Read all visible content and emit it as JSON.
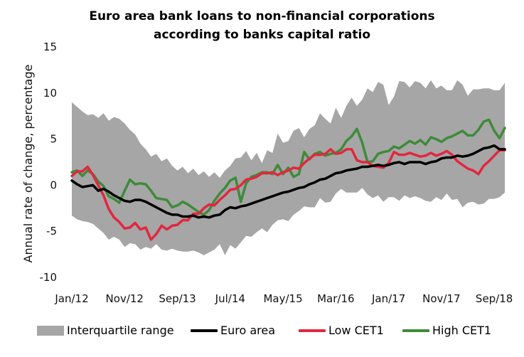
{
  "chart_data": {
    "type": "line",
    "title_lines": [
      "Euro area bank loans to non-financial corporations",
      "according to banks capital ratio"
    ],
    "ylabel": "Annual rate of change, percentage",
    "xlabel": "",
    "ylim": [
      -10,
      15
    ],
    "yticks": [
      -10,
      -5,
      0,
      5,
      10,
      15
    ],
    "xtick_labels": [
      "Jan/12",
      "Nov/12",
      "Sep/13",
      "Jul/14",
      "May/15",
      "Mar/16",
      "Jan/17",
      "Nov/17",
      "Sep/18"
    ],
    "xtick_month_index": [
      0,
      10,
      20,
      30,
      40,
      50,
      60,
      70,
      80
    ],
    "x_months": 83,
    "grid": false,
    "legend_position": "bottom",
    "colors": {
      "band": "#a6a6a6",
      "euro": "#000000",
      "low": "#e3263f",
      "high": "#3f8a3a"
    },
    "band": {
      "name": "Interquartile range",
      "upper": [
        9,
        8.5,
        8,
        7.6,
        7.7,
        7.3,
        7.8,
        7,
        7.4,
        7.2,
        6.7,
        6,
        5.5,
        4.5,
        3.9,
        3.1,
        3.4,
        2.6,
        2.9,
        2.1,
        1.6,
        2,
        1.3,
        1.8,
        1.1,
        1.5,
        0.9,
        1.4,
        0.8,
        1.6,
        2.1,
        2.9,
        3,
        3.7,
        2.7,
        3.5,
        2.4,
        3.8,
        3.5,
        5.6,
        4.6,
        4.8,
        5.9,
        6.2,
        5.2,
        6.1,
        6.5,
        7.8,
        7.2,
        6.7,
        8.4,
        7.3,
        8.6,
        9.5,
        8.6,
        9.3,
        10.5,
        10.1,
        11.2,
        10.9,
        8.7,
        9.6,
        11.3,
        11.2,
        10.6,
        11.3,
        11.1,
        10.5,
        11.4,
        10.5,
        10.8,
        10.3,
        10.3,
        11.4,
        10.9,
        9.7,
        10.4,
        10.4,
        10.5,
        10.5,
        10.3,
        10.3,
        11.1
      ],
      "lower": [
        -3.3,
        -3.7,
        -3.9,
        -4,
        -4.2,
        -4.7,
        -5.2,
        -5.9,
        -5.6,
        -5.9,
        -6.7,
        -6.3,
        -6.4,
        -7,
        -6.7,
        -6.9,
        -6.4,
        -7,
        -7.1,
        -6.9,
        -7.1,
        -7.2,
        -7.2,
        -7.1,
        -7.3,
        -7.6,
        -7.3,
        -7,
        -6.4,
        -7.6,
        -6.5,
        -6.9,
        -6.2,
        -5.5,
        -5.6,
        -5.1,
        -4.7,
        -5.1,
        -4.3,
        -3.8,
        -3.7,
        -3.9,
        -3.2,
        -2.8,
        -2.3,
        -2.4,
        -2.4,
        -1.4,
        -1.9,
        -1.8,
        -0.9,
        -0.4,
        -0.8,
        -0.8,
        -0.8,
        -0.3,
        -1,
        -1.4,
        -1.1,
        -1.8,
        -1.3,
        -1.3,
        -1.7,
        -1.1,
        -1.4,
        -1.2,
        -1.4,
        -1.7,
        -1.8,
        -1.3,
        -1.6,
        -0.9,
        -1.6,
        -1.5,
        -2.4,
        -1.9,
        -1.8,
        -2.1,
        -2,
        -1.5,
        -1.5,
        -1.3,
        -0.8
      ]
    },
    "series": [
      {
        "name": "Euro area",
        "values": [
          0.5,
          0.1,
          -0.2,
          -0.1,
          0,
          -0.6,
          -0.4,
          -0.7,
          -1.1,
          -1.4,
          -1.7,
          -1.8,
          -1.6,
          -1.6,
          -1.8,
          -2.1,
          -2.4,
          -2.7,
          -3,
          -3.2,
          -3.2,
          -3.4,
          -3.4,
          -3.3,
          -3.5,
          -3.4,
          -3.5,
          -3.3,
          -3.2,
          -2.7,
          -2.4,
          -2.5,
          -2.3,
          -2.2,
          -2,
          -1.8,
          -1.6,
          -1.4,
          -1.2,
          -1,
          -0.8,
          -0.7,
          -0.5,
          -0.3,
          -0.2,
          0.1,
          0.3,
          0.6,
          0.7,
          1,
          1.3,
          1.4,
          1.6,
          1.7,
          1.8,
          2,
          2,
          2.1,
          2.2,
          2.1,
          2.2,
          2.4,
          2.5,
          2.3,
          2.5,
          2.5,
          2.5,
          2.3,
          2.5,
          2.6,
          2.9,
          3,
          3,
          3.2,
          3.1,
          3.2,
          3.4,
          3.7,
          4,
          4.1,
          4.3,
          3.9,
          3.9
        ]
      },
      {
        "name": "Low CET1",
        "values": [
          1,
          1.5,
          1.5,
          2,
          1.1,
          0,
          -1.1,
          -2.6,
          -3.5,
          -4,
          -4.7,
          -4.6,
          -4.1,
          -4.8,
          -4.6,
          -5.9,
          -5.3,
          -4.4,
          -4.8,
          -4.4,
          -4.3,
          -3.8,
          -3.8,
          -3.1,
          -3.1,
          -2.5,
          -2.1,
          -2.2,
          -1.6,
          -1.1,
          -0.5,
          -0.4,
          0,
          0.6,
          0.7,
          0.9,
          1.3,
          1.3,
          1.4,
          1.1,
          1.4,
          1.6,
          1.9,
          1.8,
          2.4,
          2.9,
          3.3,
          3.3,
          3.4,
          3.9,
          3.4,
          3.5,
          3.9,
          3.9,
          2.7,
          2.5,
          2.5,
          2.1,
          2,
          1.9,
          2.4,
          3.6,
          3.3,
          3.3,
          3.5,
          3.3,
          3.1,
          3.2,
          3.5,
          3.2,
          3.4,
          3.7,
          3.3,
          2.6,
          2.2,
          1.8,
          1.6,
          1.2,
          2.1,
          2.6,
          3.2,
          3.8,
          3.8
        ]
      },
      {
        "name": "High CET1",
        "values": [
          1.4,
          1.6,
          1,
          1.6,
          1.2,
          0.4,
          -0.1,
          -1.2,
          -1.5,
          -1.9,
          -0.6,
          0.6,
          0.1,
          0.2,
          0.1,
          -0.6,
          -1.4,
          -1.5,
          -1.6,
          -2.4,
          -2.2,
          -1.8,
          -2.1,
          -2.5,
          -2.9,
          -3.2,
          -2.7,
          -1.7,
          -0.9,
          -0.3,
          0.5,
          0.8,
          -1.8,
          0.2,
          0.9,
          1.1,
          1.4,
          1.4,
          1.2,
          2.2,
          1.2,
          1.9,
          0.9,
          1.2,
          3.6,
          2.8,
          3.4,
          3.6,
          3.2,
          3.4,
          3.5,
          3.9,
          4.8,
          5.3,
          6.1,
          4.6,
          2.5,
          2.6,
          3.4,
          3.6,
          3.7,
          4.2,
          4,
          4.4,
          4.8,
          4.5,
          4.9,
          4.4,
          5.2,
          5,
          4.7,
          5.1,
          5.3,
          5.6,
          5.9,
          5.4,
          5.4,
          6,
          6.9,
          7.1,
          5.9,
          5.1,
          6.2
        ]
      }
    ]
  }
}
